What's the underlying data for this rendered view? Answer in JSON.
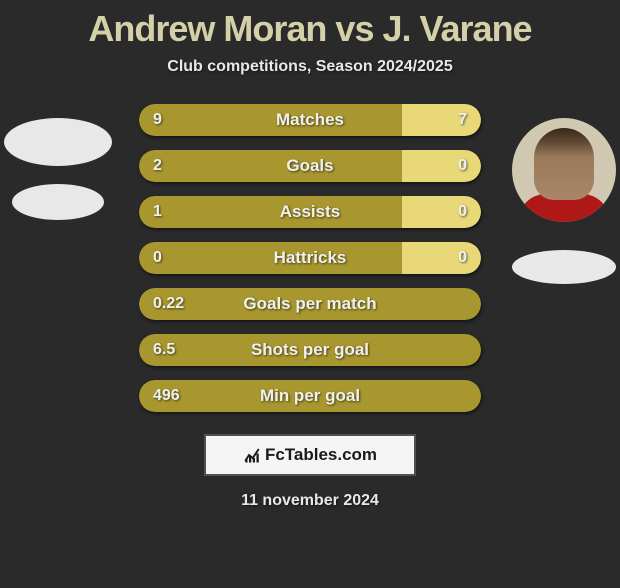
{
  "title": "Andrew Moran vs J. Varane",
  "subtitle": "Club competitions, Season 2024/2025",
  "footer_brand": "FcTables.com",
  "footer_date": "11 november 2024",
  "colors": {
    "background": "#2a2a2a",
    "title": "#d4d0a8",
    "left_bar": "#a8972e",
    "right_bar": "#e8d878",
    "left_bar_full": "#a8972e",
    "text": "#f0f0f0"
  },
  "stats": [
    {
      "label": "Matches",
      "left_val": "9",
      "right_val": "7",
      "left_pct": 77,
      "right_pct": 23,
      "left_color": "#a8972e",
      "right_color": "#e8d878"
    },
    {
      "label": "Goals",
      "left_val": "2",
      "right_val": "0",
      "left_pct": 77,
      "right_pct": 23,
      "left_color": "#a8972e",
      "right_color": "#e8d878"
    },
    {
      "label": "Assists",
      "left_val": "1",
      "right_val": "0",
      "left_pct": 77,
      "right_pct": 23,
      "left_color": "#a8972e",
      "right_color": "#e8d878"
    },
    {
      "label": "Hattricks",
      "left_val": "0",
      "right_val": "0",
      "left_pct": 77,
      "right_pct": 23,
      "left_color": "#a8972e",
      "right_color": "#e8d878"
    },
    {
      "label": "Goals per match",
      "left_val": "0.22",
      "right_val": "",
      "left_pct": 100,
      "right_pct": 0,
      "left_color": "#a8972e",
      "right_color": "#a8972e"
    },
    {
      "label": "Shots per goal",
      "left_val": "6.5",
      "right_val": "",
      "left_pct": 100,
      "right_pct": 0,
      "left_color": "#a8972e",
      "right_color": "#a8972e"
    },
    {
      "label": "Min per goal",
      "left_val": "496",
      "right_val": "",
      "left_pct": 100,
      "right_pct": 0,
      "left_color": "#a8972e",
      "right_color": "#a8972e"
    }
  ]
}
